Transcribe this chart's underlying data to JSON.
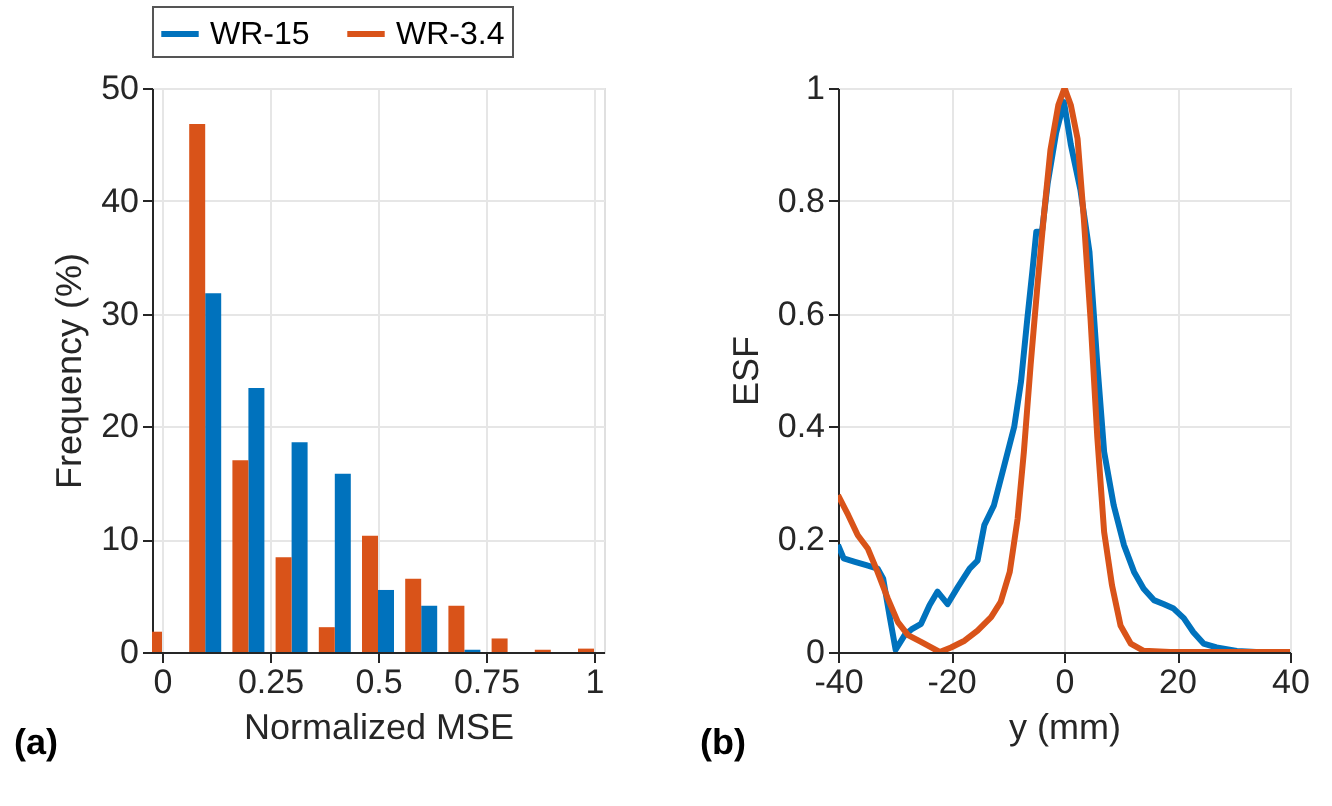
{
  "chart_data": [
    {
      "type": "bar",
      "xlabel": "Normalized MSE",
      "ylabel": "Frequency (%)",
      "annotations": [
        "(a)"
      ],
      "x": [
        0,
        0.1,
        0.2,
        0.3,
        0.4,
        0.5,
        0.6,
        0.7,
        0.8,
        0.9,
        1
      ],
      "xlim": [
        0,
        1
      ],
      "xticks": [
        0,
        0.25,
        0.5,
        0.75,
        1
      ],
      "ylim": [
        0,
        50
      ],
      "yticks": [
        0,
        10,
        20,
        30,
        40,
        50
      ],
      "grid": true,
      "legend": "top",
      "series": [
        {
          "name": "WR-15",
          "color": "#0072bd",
          "values": [
            0,
            31.8,
            23.4,
            18.6,
            15.8,
            5.5,
            4.1,
            0.2,
            0,
            0,
            0
          ]
        },
        {
          "name": "WR-3.4",
          "color": "#d95319",
          "values": [
            1.8,
            46.8,
            17,
            8.4,
            2.2,
            10.3,
            6.5,
            4.1,
            1.2,
            0.2,
            0.3
          ]
        }
      ]
    },
    {
      "type": "line",
      "xlabel": "y (mm)",
      "ylabel": "ESF",
      "annotations": [
        "(b)"
      ],
      "xlim": [
        -40,
        40
      ],
      "xticks": [
        -40,
        -20,
        0,
        20,
        40
      ],
      "ylim": [
        0,
        1
      ],
      "yticks": [
        0,
        0.2,
        0.4,
        0.6,
        0.8,
        1
      ],
      "grid": true,
      "legend": "top",
      "marker": "none",
      "line_style": "solid",
      "series": [
        {
          "name": "WR-15",
          "color": "#0072bd",
          "x": [
            -40,
            -39,
            -37,
            -35,
            -33,
            -32,
            -30.8,
            -29.8,
            -28.2,
            -27,
            -25.3,
            -23.8,
            -22.4,
            -20.6,
            -18.8,
            -16.7,
            -15.3,
            -14.1,
            -12.4,
            -10.6,
            -8.8,
            -7.6,
            -6.5,
            -5.6,
            -4.9,
            -3.9,
            -2.9,
            -1.4,
            0,
            1.2,
            2.9,
            4.5,
            5.9,
            7.1,
            8.8,
            10.6,
            12.4,
            14.1,
            15.9,
            17.6,
            19.4,
            21.2,
            22.9,
            24.7,
            27,
            30.6,
            34,
            40
          ],
          "values": [
            0.19,
            0.166,
            0.16,
            0.154,
            0.148,
            0.13,
            0.06,
            0.004,
            0.03,
            0.04,
            0.05,
            0.083,
            0.107,
            0.085,
            0.115,
            0.148,
            0.162,
            0.225,
            0.26,
            0.33,
            0.4,
            0.48,
            0.59,
            0.675,
            0.745,
            0.745,
            0.83,
            0.92,
            0.975,
            0.9,
            0.82,
            0.71,
            0.51,
            0.355,
            0.26,
            0.19,
            0.142,
            0.112,
            0.092,
            0.085,
            0.077,
            0.06,
            0.035,
            0.015,
            0.008,
            0.002,
            0,
            0
          ]
        },
        {
          "name": "WR-3.4",
          "color": "#d95319",
          "x": [
            -40,
            -38.2,
            -36.5,
            -34.7,
            -33,
            -31.2,
            -29.4,
            -27.6,
            -25.3,
            -23.5,
            -22,
            -20,
            -17.6,
            -15.3,
            -12.9,
            -11.2,
            -9.6,
            -8.2,
            -7.1,
            -5.9,
            -4.7,
            -3.5,
            -2.4,
            -1,
            0.1,
            1.2,
            2.4,
            3.5,
            4.7,
            5.9,
            7.1,
            8.5,
            10,
            11.8,
            14.1,
            18.8,
            40
          ],
          "values": [
            0.278,
            0.243,
            0.207,
            0.183,
            0.142,
            0.095,
            0.053,
            0.03,
            0.018,
            0.008,
            0,
            0.008,
            0.02,
            0.038,
            0.062,
            0.089,
            0.142,
            0.237,
            0.355,
            0.51,
            0.65,
            0.78,
            0.89,
            0.97,
            1,
            0.97,
            0.91,
            0.77,
            0.59,
            0.38,
            0.213,
            0.118,
            0.047,
            0.015,
            0.002,
            0,
            0
          ]
        }
      ]
    }
  ]
}
